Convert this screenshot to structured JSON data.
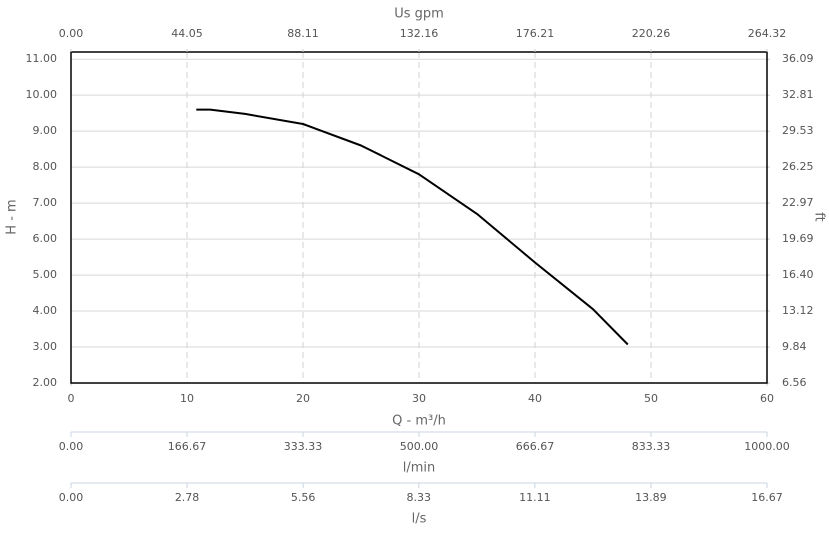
{
  "chart_data": {
    "type": "line",
    "x": [
      10.8,
      12,
      15,
      20,
      25,
      30,
      35,
      40,
      45,
      48
    ],
    "values": [
      9.6,
      9.6,
      9.48,
      9.2,
      8.6,
      7.8,
      6.7,
      5.35,
      4.05,
      3.07
    ],
    "color": "#000000",
    "xlabel": "Q - m³/h",
    "ylabel": "H - m",
    "y2label": "ft",
    "xlim": [
      0,
      60
    ],
    "xticks": [
      0,
      10,
      20,
      30,
      40,
      50,
      60
    ],
    "ylim": [
      2,
      11.2
    ],
    "yticks": [
      {
        "value": 2,
        "label": "2.00"
      },
      {
        "value": 3,
        "label": "3.00"
      },
      {
        "value": 4,
        "label": "4.00"
      },
      {
        "value": 5,
        "label": "5.00"
      },
      {
        "value": 6,
        "label": "6.00"
      },
      {
        "value": 7,
        "label": "7.00"
      },
      {
        "value": 8,
        "label": "8.00"
      },
      {
        "value": 9,
        "label": "9.00"
      },
      {
        "value": 10,
        "label": "10.00"
      },
      {
        "value": 11,
        "label": "11.00"
      }
    ],
    "y2lim": [
      6.56,
      36.75
    ],
    "y2ticks": [
      6.56,
      9.84,
      13.12,
      {
        "value": 16.4,
        "label": "16.40"
      },
      19.69,
      22.97,
      26.25,
      29.53,
      32.81,
      36.09
    ],
    "grid": true,
    "secondary_x_axes": [
      {
        "label": "Us gpm",
        "position": "top",
        "lim": [
          0,
          264.32
        ],
        "ticks": [
          {
            "value": 0,
            "label": "0.00"
          },
          44.05,
          88.11,
          132.16,
          176.21,
          220.26,
          264.32
        ]
      },
      {
        "label": "l/min",
        "position": "bottom",
        "lim": [
          0,
          1000
        ],
        "ticks": [
          {
            "value": 0,
            "label": "0.00"
          },
          166.67,
          333.33,
          {
            "value": 500,
            "label": "500.00"
          },
          666.67,
          833.33,
          {
            "value": 1000,
            "label": "1000.00"
          }
        ]
      },
      {
        "label": "l/s",
        "position": "bottom",
        "lim": [
          0,
          16.67
        ],
        "ticks": [
          {
            "value": 0,
            "label": "0.00"
          },
          2.78,
          5.56,
          8.33,
          11.11,
          13.89,
          16.67
        ]
      }
    ]
  }
}
